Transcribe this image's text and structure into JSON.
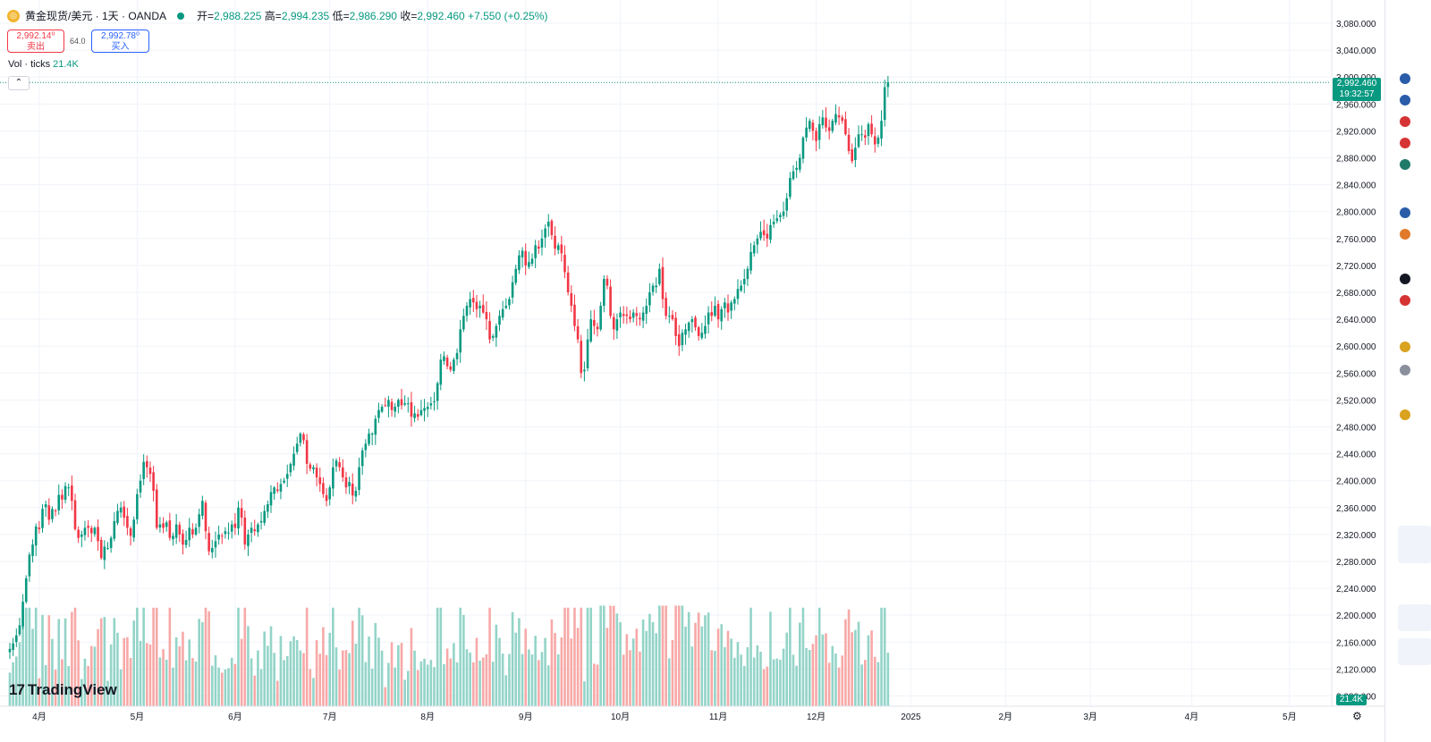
{
  "legend": {
    "symbol_icon": "gold-coin-icon",
    "title": "黄金现货/美元 · 1天 · OANDA",
    "open_label": "开",
    "open": "2,988.225",
    "high_label": "高",
    "high": "2,994.235",
    "low_label": "低",
    "low": "2,986.290",
    "close_label": "收",
    "close": "2,992.460",
    "change": "+7.550 (+0.25%)"
  },
  "trade": {
    "sell_price": "2,992.14⁰",
    "sell_label": "卖出",
    "spread": "64.0",
    "buy_price": "2,992.78⁰",
    "buy_label": "买入"
  },
  "volume_legend": {
    "label": "Vol · ticks",
    "value": "21.4K"
  },
  "collapse_icon": "chevron-up-icon",
  "last_price": {
    "price": "2,992.460",
    "countdown": "19:32:57"
  },
  "volume_tag": "21.4K",
  "logo_text": "TradingView",
  "logo_mark": "17",
  "colors": {
    "up": "#089981",
    "down": "#f23645",
    "up_vol": "#93d4c8",
    "down_vol": "#f7a9a7",
    "grid": "#f0f3fa",
    "text": "#131722"
  },
  "chart_data": {
    "type": "candlestick",
    "title": "黄金现货/美元 · 1天 · OANDA",
    "ylim": [
      2060,
      3100
    ],
    "y_ticks": [
      2080,
      2120,
      2160,
      2200,
      2240,
      2280,
      2320,
      2360,
      2400,
      2440,
      2480,
      2520,
      2560,
      2600,
      2640,
      2680,
      2720,
      2760,
      2800,
      2840,
      2880,
      2920,
      2960,
      3000,
      3040,
      3080
    ],
    "y_tick_labels": [
      "2,080.000",
      "2,120.000",
      "2,160.000",
      "2,200.000",
      "2,240.000",
      "2,280.000",
      "2,320.000",
      "2,360.000",
      "2,400.000",
      "2,440.000",
      "2,480.000",
      "2,520.000",
      "2,560.000",
      "2,600.000",
      "2,640.000",
      "2,680.000",
      "2,720.000",
      "2,760.000",
      "2,800.000",
      "2,840.000",
      "2,880.000",
      "2,920.000",
      "2,960.000",
      "3,000.000",
      "3,040.000",
      "3,080.000"
    ],
    "x_labels": [
      "4月",
      "5月",
      "6月",
      "7月",
      "8月",
      "9月",
      "10月",
      "11月",
      "12月",
      "2025",
      "2月",
      "3月",
      "4月",
      "5月"
    ],
    "x_label_day_index": [
      0,
      30,
      60,
      89,
      119,
      149,
      178,
      208,
      238,
      267,
      296,
      322,
      353,
      383
    ],
    "first_day_offset": -9,
    "volume_range": [
      0,
      26000
    ],
    "closes": [
      2150,
      2158,
      2170,
      2185,
      2220,
      2255,
      2290,
      2305,
      2332,
      2328,
      2358,
      2365,
      2342,
      2358,
      2355,
      2379,
      2372,
      2392,
      2390,
      2370,
      2328,
      2315,
      2320,
      2330,
      2330,
      2322,
      2330,
      2310,
      2285,
      2302,
      2300,
      2315,
      2340,
      2355,
      2360,
      2345,
      2330,
      2318,
      2342,
      2380,
      2400,
      2428,
      2420,
      2410,
      2385,
      2330,
      2335,
      2330,
      2338,
      2315,
      2318,
      2335,
      2320,
      2305,
      2312,
      2330,
      2320,
      2330,
      2350,
      2370,
      2325,
      2295,
      2300,
      2310,
      2320,
      2318,
      2325,
      2323,
      2335,
      2330,
      2360,
      2345,
      2305,
      2320,
      2330,
      2325,
      2335,
      2340,
      2355,
      2365,
      2383,
      2390,
      2385,
      2395,
      2400,
      2410,
      2425,
      2440,
      2455,
      2470,
      2460,
      2425,
      2418,
      2420,
      2405,
      2395,
      2380,
      2370,
      2390,
      2420,
      2430,
      2420,
      2405,
      2390,
      2398,
      2378,
      2385,
      2420,
      2445,
      2455,
      2470,
      2470,
      2492,
      2505,
      2510,
      2512,
      2520,
      2505,
      2510,
      2520,
      2512,
      2515,
      2515,
      2495,
      2500,
      2495,
      2505,
      2508,
      2510,
      2515,
      2518,
      2545,
      2580,
      2585,
      2570,
      2565,
      2580,
      2590,
      2625,
      2645,
      2660,
      2670,
      2665,
      2655,
      2660,
      2650,
      2640,
      2610,
      2615,
      2630,
      2645,
      2655,
      2660,
      2670,
      2695,
      2715,
      2735,
      2742,
      2720,
      2725,
      2730,
      2750,
      2745,
      2760,
      2775,
      2785,
      2765,
      2745,
      2750,
      2738,
      2710,
      2680,
      2660,
      2630,
      2610,
      2560,
      2565,
      2610,
      2640,
      2630,
      2625,
      2660,
      2700,
      2690,
      2645,
      2625,
      2640,
      2650,
      2645,
      2645,
      2640,
      2650,
      2645,
      2640,
      2650,
      2660,
      2680,
      2690,
      2690,
      2715,
      2670,
      2645,
      2645,
      2640,
      2615,
      2600,
      2620,
      2625,
      2635,
      2640,
      2628,
      2615,
      2620,
      2630,
      2650,
      2645,
      2660,
      2640,
      2655,
      2665,
      2650,
      2665,
      2670,
      2685,
      2690,
      2700,
      2715,
      2740,
      2750,
      2760,
      2770,
      2765,
      2760,
      2780,
      2785,
      2790,
      2795,
      2800,
      2820,
      2850,
      2860,
      2865,
      2880,
      2910,
      2925,
      2935,
      2920,
      2905,
      2930,
      2940,
      2925,
      2920,
      2935,
      2945,
      2940,
      2935,
      2915,
      2890,
      2875,
      2895,
      2915,
      2915,
      2910,
      2930,
      2915,
      2900,
      2910,
      2935,
      2985,
      2992
    ]
  }
}
